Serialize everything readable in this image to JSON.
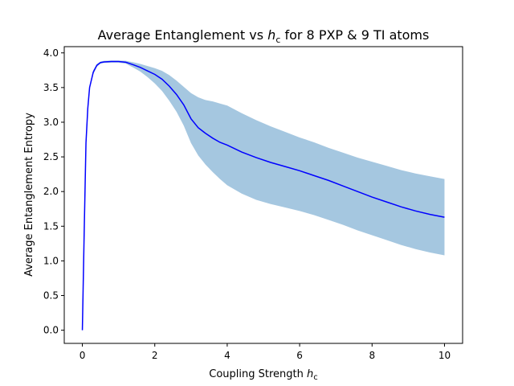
{
  "chart_data": {
    "type": "line",
    "title_main": "Average Entanglement vs ",
    "title_var": "h",
    "title_sub": "c",
    "title_rest": " for 8 PXP & 9 TI atoms",
    "xlabel_main": "Coupling Strength ",
    "xlabel_var": "h",
    "xlabel_sub": "c",
    "ylabel": "Average Entanglement Entropy",
    "xlim": [
      -0.5,
      10.5
    ],
    "ylim": [
      -0.19,
      4.09
    ],
    "xticks": [
      0,
      2,
      4,
      6,
      8,
      10
    ],
    "xtick_labels": [
      "0",
      "2",
      "4",
      "6",
      "8",
      "10"
    ],
    "yticks": [
      0.0,
      0.5,
      1.0,
      1.5,
      2.0,
      2.5,
      3.0,
      3.5,
      4.0
    ],
    "ytick_labels": [
      "0.0",
      "0.5",
      "1.0",
      "1.5",
      "2.0",
      "2.5",
      "3.0",
      "3.5",
      "4.0"
    ],
    "grid": false,
    "series": [
      {
        "role": "mean",
        "color": "#0000ff",
        "x": [
          0,
          0.05,
          0.1,
          0.15,
          0.2,
          0.3,
          0.4,
          0.5,
          0.6,
          0.8,
          1.0,
          1.2,
          1.4,
          1.6,
          1.8,
          2.0,
          2.2,
          2.4,
          2.6,
          2.8,
          3.0,
          3.2,
          3.4,
          3.6,
          3.8,
          4.0,
          4.4,
          4.8,
          5.2,
          5.6,
          6.0,
          6.4,
          6.8,
          7.2,
          7.6,
          8.0,
          8.4,
          8.8,
          9.2,
          9.6,
          10.0
        ],
        "y": [
          0.0,
          1.4,
          2.7,
          3.2,
          3.5,
          3.72,
          3.82,
          3.86,
          3.87,
          3.875,
          3.875,
          3.865,
          3.83,
          3.79,
          3.74,
          3.69,
          3.62,
          3.52,
          3.4,
          3.25,
          3.05,
          2.92,
          2.84,
          2.77,
          2.71,
          2.67,
          2.57,
          2.49,
          2.42,
          2.36,
          2.3,
          2.23,
          2.16,
          2.08,
          2.0,
          1.92,
          1.85,
          1.78,
          1.72,
          1.67,
          1.63
        ]
      },
      {
        "role": "band",
        "color": "#a5c7e0",
        "x": [
          0,
          0.05,
          0.1,
          0.15,
          0.2,
          0.3,
          0.4,
          0.5,
          0.6,
          0.8,
          1.0,
          1.2,
          1.4,
          1.6,
          1.8,
          2.0,
          2.2,
          2.4,
          2.6,
          2.8,
          3.0,
          3.2,
          3.4,
          3.6,
          3.8,
          4.0,
          4.4,
          4.8,
          5.2,
          5.6,
          6.0,
          6.4,
          6.8,
          7.2,
          7.6,
          8.0,
          8.4,
          8.8,
          9.2,
          9.6,
          10.0
        ],
        "upper": [
          0.0,
          1.42,
          2.72,
          3.22,
          3.52,
          3.75,
          3.84,
          3.875,
          3.885,
          3.89,
          3.89,
          3.885,
          3.865,
          3.84,
          3.81,
          3.78,
          3.74,
          3.68,
          3.6,
          3.51,
          3.42,
          3.36,
          3.32,
          3.3,
          3.27,
          3.24,
          3.13,
          3.03,
          2.94,
          2.86,
          2.78,
          2.71,
          2.63,
          2.56,
          2.49,
          2.43,
          2.37,
          2.31,
          2.26,
          2.22,
          2.18
        ],
        "lower": [
          0.0,
          1.38,
          2.68,
          3.18,
          3.48,
          3.69,
          3.8,
          3.845,
          3.855,
          3.86,
          3.86,
          3.845,
          3.79,
          3.73,
          3.65,
          3.56,
          3.45,
          3.31,
          3.15,
          2.95,
          2.7,
          2.52,
          2.39,
          2.28,
          2.18,
          2.09,
          1.97,
          1.88,
          1.82,
          1.77,
          1.72,
          1.66,
          1.59,
          1.52,
          1.44,
          1.37,
          1.3,
          1.23,
          1.17,
          1.12,
          1.08
        ]
      }
    ]
  }
}
